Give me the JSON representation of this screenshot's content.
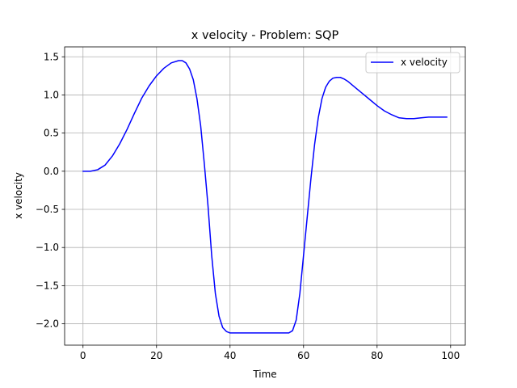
{
  "chart_data": {
    "type": "line",
    "title": "x velocity - Problem: SQP",
    "xlabel": "Time",
    "ylabel": "x velocity",
    "xlim": [
      -5,
      104
    ],
    "ylim": [
      -2.28,
      1.63
    ],
    "xticks": [
      0,
      20,
      40,
      60,
      80,
      100
    ],
    "yticks": [
      -2.0,
      -1.5,
      -1.0,
      -0.5,
      0.0,
      0.5,
      1.0,
      1.5
    ],
    "xtick_labels": [
      "0",
      "20",
      "40",
      "60",
      "80",
      "100"
    ],
    "ytick_labels": [
      "−2.0",
      "−1.5",
      "−1.0",
      "−0.5",
      "0.0",
      "0.5",
      "1.0",
      "1.5"
    ],
    "grid": true,
    "legend_position": "top-right",
    "series": [
      {
        "name": "x velocity",
        "color": "#0000ff",
        "x": [
          0,
          2,
          4,
          6,
          8,
          10,
          12,
          14,
          16,
          18,
          20,
          22,
          24,
          26,
          27,
          28,
          29,
          30,
          31,
          32,
          33,
          34,
          35,
          36,
          37,
          38,
          39,
          40,
          41,
          42,
          44,
          46,
          48,
          50,
          52,
          54,
          56,
          57,
          58,
          59,
          60,
          61,
          62,
          63,
          64,
          65,
          66,
          67,
          68,
          69,
          70,
          71,
          72,
          74,
          76,
          78,
          80,
          82,
          84,
          86,
          88,
          90,
          92,
          94,
          96,
          98,
          99
        ],
        "y": [
          0.0,
          0.0,
          0.02,
          0.08,
          0.2,
          0.36,
          0.55,
          0.76,
          0.96,
          1.12,
          1.25,
          1.35,
          1.42,
          1.45,
          1.45,
          1.42,
          1.34,
          1.2,
          0.95,
          0.6,
          0.1,
          -0.45,
          -1.1,
          -1.6,
          -1.9,
          -2.05,
          -2.1,
          -2.12,
          -2.12,
          -2.12,
          -2.12,
          -2.12,
          -2.12,
          -2.12,
          -2.12,
          -2.12,
          -2.12,
          -2.09,
          -1.95,
          -1.6,
          -1.1,
          -0.6,
          -0.1,
          0.35,
          0.7,
          0.95,
          1.1,
          1.18,
          1.22,
          1.23,
          1.23,
          1.21,
          1.18,
          1.1,
          1.02,
          0.94,
          0.86,
          0.79,
          0.74,
          0.7,
          0.69,
          0.69,
          0.7,
          0.71,
          0.71,
          0.71,
          0.71
        ]
      }
    ]
  }
}
